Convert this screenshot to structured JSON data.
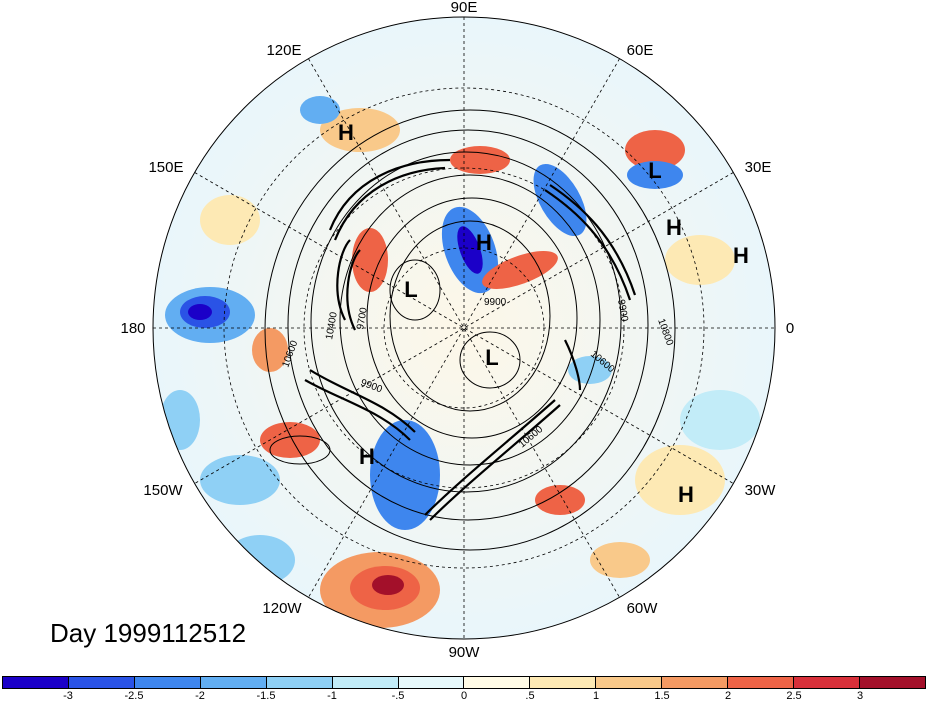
{
  "title": "Day 1999112512",
  "longitude_labels": {
    "top": "90E",
    "top_right": "60E",
    "upper_right": "30E",
    "right": "0",
    "lower_right": "30W",
    "bottom_right": "60W",
    "bottom": "90W",
    "bottom_left": "120W",
    "lower_left": "150W",
    "left": "180",
    "upper_left": "150E",
    "top_left": "120E"
  },
  "pressure_centers": [
    {
      "id": "h1",
      "label": "H",
      "region": "north-pacific-upper"
    },
    {
      "id": "l1",
      "label": "L",
      "region": "scandinavia"
    },
    {
      "id": "h2",
      "label": "H",
      "region": "siberia"
    },
    {
      "id": "h3",
      "label": "H",
      "region": "europe"
    },
    {
      "id": "h4",
      "label": "H",
      "region": "europe-east"
    },
    {
      "id": "l2",
      "label": "L",
      "region": "arctic"
    },
    {
      "id": "l3",
      "label": "L",
      "region": "canadian-arctic"
    },
    {
      "id": "h5",
      "label": "H",
      "region": "north-pacific"
    },
    {
      "id": "h6",
      "label": "H",
      "region": "north-atlantic"
    }
  ],
  "contour_labels": [
    "10600",
    "10400",
    "9700",
    "9900",
    "9900",
    "10600",
    "10800",
    "9900",
    "10600"
  ],
  "colorbar": {
    "colors": [
      "#1b00c8",
      "#2a53e6",
      "#3e86ee",
      "#62aef2",
      "#8fd0f5",
      "#c2ecf8",
      "#e6f8fb",
      "#fffbe6",
      "#fde9b4",
      "#f9c98a",
      "#f49a63",
      "#ee6346",
      "#d8303a",
      "#a3102a"
    ],
    "tick_labels": [
      "-3",
      "-2.5",
      "-2",
      "-1.5",
      "-1",
      "-.5",
      "0",
      ".5",
      "1",
      "1.5",
      "2",
      "2.5",
      "3"
    ]
  }
}
